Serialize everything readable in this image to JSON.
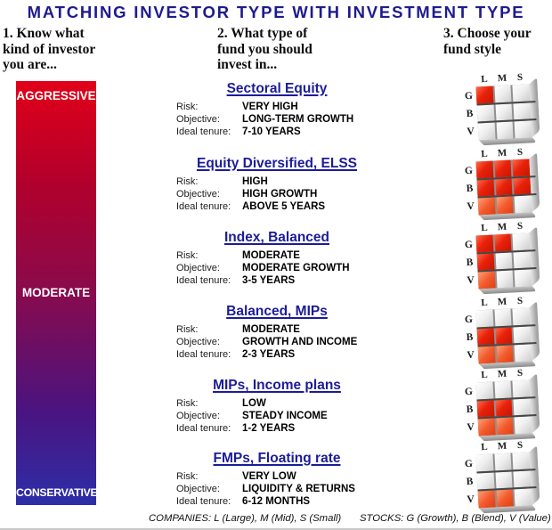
{
  "title": "MATCHING INVESTOR TYPE WITH INVESTMENT TYPE",
  "colors": {
    "title": "#1e1b8e",
    "fund_name": "#1c1c99"
  },
  "column_headings": {
    "investor": "1. Know what\nkind of investor\nyou are...",
    "fund_type": "2. What type of\nfund you should\ninvest in...",
    "fund_style": "3. Choose your\nfund style"
  },
  "risk_bar": {
    "top_label": "AGGRESSIVE",
    "middle_label": "MODERATE",
    "bottom_label": "CONSERVATIVE",
    "gradient_top_color": "#e10019",
    "gradient_middle_color": "#8c0a4a",
    "gradient_bottom_color": "#2e2ea8"
  },
  "field_labels": {
    "risk": "Risk:",
    "objective": "Objective:",
    "tenure": "Ideal tenure:"
  },
  "funds": [
    {
      "name": "Sectoral Equity",
      "risk": "VERY HIGH",
      "objective": "LONG-TERM GROWTH",
      "tenure": "7-10 YEARS"
    },
    {
      "name": "Equity Diversified, ELSS",
      "risk": "HIGH",
      "objective": "HIGH GROWTH",
      "tenure": "ABOVE 5 YEARS"
    },
    {
      "name": "Index, Balanced",
      "risk": "MODERATE",
      "objective": "MODERATE GROWTH",
      "tenure": "3-5 YEARS"
    },
    {
      "name": "Balanced, MIPs",
      "risk": "MODERATE",
      "objective": "GROWTH AND INCOME",
      "tenure": "2-3 YEARS"
    },
    {
      "name": "MIPs, Income plans",
      "risk": "LOW",
      "objective": "STEADY INCOME",
      "tenure": "1-2 YEARS"
    },
    {
      "name": "FMPs, Floating rate",
      "risk": "VERY LOW",
      "objective": "LIQUIDITY & RETURNS",
      "tenure": "6-12 MONTHS"
    }
  ],
  "style_grid": {
    "column_labels": [
      "L",
      "M",
      "S"
    ],
    "row_labels": [
      "G",
      "B",
      "V"
    ],
    "highlight_strong_color": "#e8220b",
    "highlight_light_color": "#f25c2e",
    "grids": [
      {
        "cells": [
          [
            "strong",
            "none",
            "none"
          ],
          [
            "none",
            "none",
            "none"
          ],
          [
            "none",
            "none",
            "none"
          ]
        ]
      },
      {
        "cells": [
          [
            "strong",
            "strong",
            "strong"
          ],
          [
            "strong",
            "strong",
            "strong"
          ],
          [
            "light",
            "light",
            "none"
          ]
        ]
      },
      {
        "cells": [
          [
            "strong",
            "strong",
            "none"
          ],
          [
            "strong",
            "none",
            "none"
          ],
          [
            "light",
            "none",
            "none"
          ]
        ]
      },
      {
        "cells": [
          [
            "none",
            "none",
            "none"
          ],
          [
            "strong",
            "strong",
            "none"
          ],
          [
            "light",
            "light",
            "none"
          ]
        ]
      },
      {
        "cells": [
          [
            "none",
            "none",
            "none"
          ],
          [
            "strong",
            "strong",
            "none"
          ],
          [
            "light",
            "light",
            "none"
          ]
        ]
      },
      {
        "cells": [
          [
            "none",
            "none",
            "none"
          ],
          [
            "none",
            "none",
            "none"
          ],
          [
            "light",
            "light",
            "none"
          ]
        ]
      }
    ]
  },
  "legend": {
    "companies": "COMPANIES: L (Large), M (Mid), S (Small)",
    "stocks": "STOCKS: G (Growth), B (Blend), V (Value)"
  }
}
